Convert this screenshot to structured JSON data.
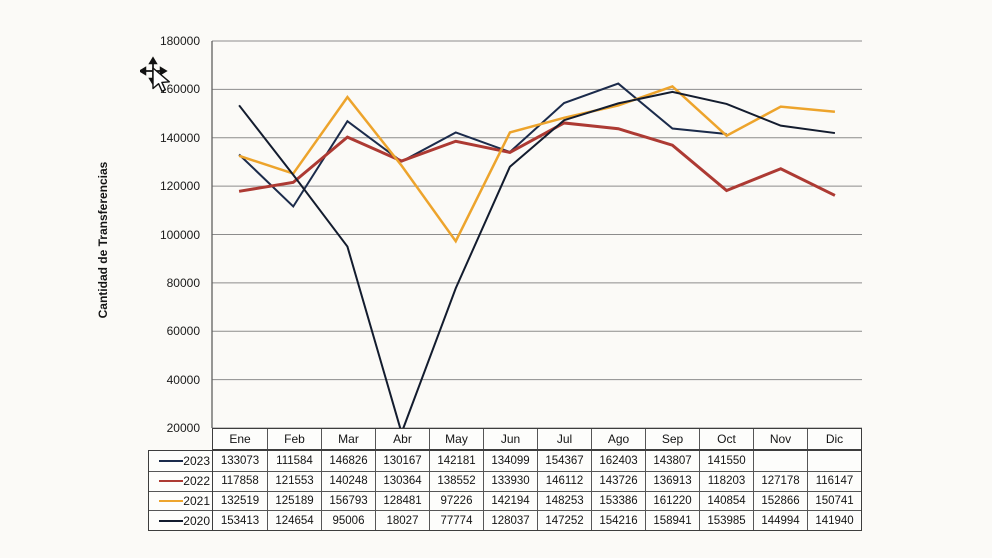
{
  "page": {
    "background": "#fbfaf7"
  },
  "chart_data": {
    "type": "line",
    "title": "",
    "xlabel": "",
    "ylabel": "Cantidad de Transferencias",
    "categories": [
      "Ene",
      "Feb",
      "Mar",
      "Abr",
      "May",
      "Jun",
      "Jul",
      "Ago",
      "Sep",
      "Oct",
      "Nov",
      "Dic"
    ],
    "ylim": [
      20000,
      180000
    ],
    "y_ticks": [
      20000,
      40000,
      60000,
      80000,
      100000,
      120000,
      140000,
      160000,
      180000
    ],
    "grid": true,
    "legend_position": "left-of-data-table",
    "gridline_color": "#8c8c8c",
    "axis_color": "#606060",
    "series": [
      {
        "name": "2023",
        "color": "#1b2b4b",
        "line_width": 2,
        "values": [
          133073,
          111584,
          146826,
          130167,
          142181,
          134099,
          154367,
          162403,
          143807,
          141550,
          null,
          null
        ]
      },
      {
        "name": "2022",
        "color": "#ad3a33",
        "line_width": 3,
        "values": [
          117858,
          121553,
          140248,
          130364,
          138552,
          133930,
          146112,
          143726,
          136913,
          118203,
          127178,
          116147
        ]
      },
      {
        "name": "2021",
        "color": "#eda42c",
        "line_width": 2.5,
        "values": [
          132519,
          125189,
          156793,
          128481,
          97226,
          142194,
          148253,
          153386,
          161220,
          140854,
          152866,
          150741
        ]
      },
      {
        "name": "2020",
        "color": "#131c2e",
        "line_width": 2,
        "values": [
          153413,
          124654,
          95006,
          18027,
          77774,
          128037,
          147252,
          154216,
          158941,
          153985,
          144994,
          141940
        ]
      }
    ]
  },
  "cursor": {
    "kind": "move-pointer"
  }
}
